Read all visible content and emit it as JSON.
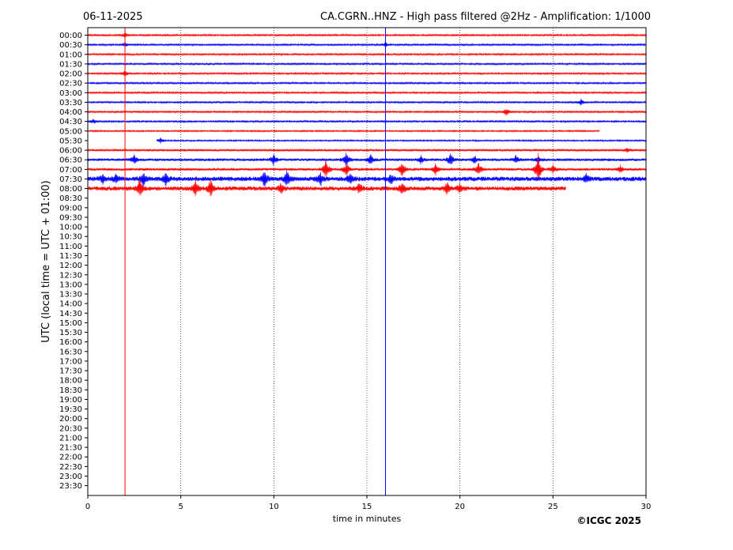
{
  "chart_data": {
    "type": "line",
    "title_left": "06-11-2025",
    "title": "CA.CGRN..HNZ - High pass filtered @2Hz - Amplification: 1/1000",
    "xlabel": "time in minutes",
    "ylabel": "UTC (local time = UTC + 01:00)",
    "copyright": "©ICGC 2025",
    "xlim": [
      0,
      30
    ],
    "x_ticks": [
      "0",
      "5",
      "10",
      "15",
      "20",
      "25",
      "30"
    ],
    "x_tick_values": [
      0,
      5,
      10,
      15,
      20,
      25,
      30
    ],
    "x_grid_values": [
      5,
      10,
      15,
      20,
      25
    ],
    "x_grid": "dotted vertical lines at every 5 minutes",
    "row_labels": [
      "00:00",
      "00:30",
      "01:00",
      "01:30",
      "02:00",
      "02:30",
      "03:00",
      "03:30",
      "04:00",
      "04:30",
      "05:00",
      "05:30",
      "06:00",
      "06:30",
      "07:00",
      "07:30",
      "08:00",
      "08:30",
      "09:00",
      "09:30",
      "10:00",
      "10:30",
      "11:00",
      "11:30",
      "12:00",
      "12:30",
      "13:00",
      "13:30",
      "14:00",
      "14:30",
      "15:00",
      "15:30",
      "16:00",
      "16:30",
      "17:00",
      "17:30",
      "18:00",
      "18:30",
      "19:00",
      "19:30",
      "20:00",
      "20:30",
      "21:00",
      "21:30",
      "22:00",
      "22:30",
      "23:00",
      "23:30"
    ],
    "row_colors": [
      "#ff0000",
      "#0000ff"
    ],
    "traces": [
      {
        "row": "00:00",
        "start": 0,
        "end": 30,
        "amp": 1.2,
        "events": [
          [
            2.0,
            3
          ]
        ]
      },
      {
        "row": "00:30",
        "start": 0,
        "end": 30,
        "amp": 1.2,
        "events": [
          [
            2.0,
            3
          ],
          [
            16.0,
            3
          ]
        ]
      },
      {
        "row": "01:00",
        "start": 0,
        "end": 30,
        "amp": 1.2,
        "events": []
      },
      {
        "row": "01:30",
        "start": 0,
        "end": 30,
        "amp": 1.2,
        "events": []
      },
      {
        "row": "02:00",
        "start": 0,
        "end": 30,
        "amp": 1.2,
        "events": [
          [
            2.0,
            4
          ]
        ]
      },
      {
        "row": "02:30",
        "start": 0,
        "end": 30,
        "amp": 1.2,
        "events": []
      },
      {
        "row": "03:00",
        "start": 0,
        "end": 30,
        "amp": 1.2,
        "events": []
      },
      {
        "row": "03:30",
        "start": 0,
        "end": 30,
        "amp": 1.2,
        "events": [
          [
            26.5,
            4
          ]
        ]
      },
      {
        "row": "04:00",
        "start": 0,
        "end": 30,
        "amp": 1.2,
        "events": [
          [
            22.5,
            5
          ]
        ]
      },
      {
        "row": "04:30",
        "start": 0,
        "end": 30,
        "amp": 1.2,
        "events": [
          [
            0.3,
            3
          ]
        ]
      },
      {
        "row": "05:00",
        "start": 0,
        "end": 27.5,
        "amp": 1.0,
        "events": []
      },
      {
        "row": "05:30",
        "start": 3.7,
        "end": 30,
        "amp": 1.0,
        "events": [
          [
            3.9,
            4
          ]
        ]
      },
      {
        "row": "06:00",
        "start": 0,
        "end": 30,
        "amp": 1.5,
        "events": [
          [
            29.0,
            3
          ]
        ]
      },
      {
        "row": "06:30",
        "start": 0,
        "end": 30,
        "amp": 1.8,
        "events": [
          [
            2.5,
            6
          ],
          [
            10.0,
            8
          ],
          [
            13.9,
            10
          ],
          [
            15.2,
            7
          ],
          [
            17.9,
            5
          ],
          [
            19.5,
            9
          ],
          [
            20.8,
            5
          ],
          [
            23.0,
            5
          ],
          [
            24.2,
            4
          ]
        ]
      },
      {
        "row": "07:00",
        "start": 0,
        "end": 30,
        "amp": 1.8,
        "events": [
          [
            12.8,
            14
          ],
          [
            13.9,
            9
          ],
          [
            16.9,
            10
          ],
          [
            18.7,
            8
          ],
          [
            21.0,
            9
          ],
          [
            24.2,
            20
          ],
          [
            25.0,
            5
          ],
          [
            28.6,
            5
          ]
        ]
      },
      {
        "row": "07:30",
        "start": 0,
        "end": 30,
        "amp": 3.0,
        "events": [
          [
            0.8,
            6
          ],
          [
            1.5,
            6
          ],
          [
            3.0,
            10
          ],
          [
            4.2,
            8
          ],
          [
            9.5,
            13
          ],
          [
            10.7,
            11
          ],
          [
            12.5,
            9
          ],
          [
            14.1,
            8
          ],
          [
            16.3,
            6
          ],
          [
            26.8,
            6
          ]
        ]
      },
      {
        "row": "08:00",
        "start": 0,
        "end": 25.7,
        "amp": 2.8,
        "events": [
          [
            2.8,
            12
          ],
          [
            5.8,
            10
          ],
          [
            6.6,
            12
          ],
          [
            10.4,
            7
          ],
          [
            14.6,
            7
          ],
          [
            16.9,
            8
          ],
          [
            19.3,
            8
          ],
          [
            20.0,
            6
          ]
        ]
      }
    ],
    "vertical_lines": [
      {
        "x": 2.0,
        "color": "#ff0000"
      },
      {
        "x": 16.0,
        "color": "#0000ff"
      }
    ]
  }
}
